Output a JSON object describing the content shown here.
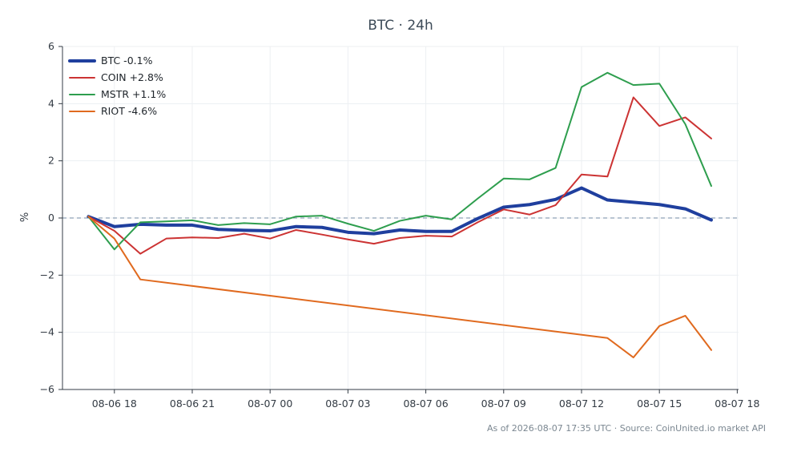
{
  "chart_data": {
    "type": "line",
    "title": "BTC · 24h",
    "xlabel": "",
    "ylabel": "%",
    "ylim": [
      -6,
      6
    ],
    "y_ticks": [
      6,
      4,
      2,
      0,
      -2,
      -4,
      -6
    ],
    "y_tick_labels": [
      "6",
      "4",
      "2",
      "0",
      "−2",
      "−4",
      "−6"
    ],
    "x_ticks": [
      "2026-08-06 18:00",
      "2026-08-06 21:00",
      "2026-08-07 00:00",
      "2026-08-07 03:00",
      "2026-08-07 06:00",
      "2026-08-07 09:00",
      "2026-08-07 12:00",
      "2026-08-07 15:00",
      "2026-08-07 18:00"
    ],
    "x_tick_labels": [
      "08-06 18",
      "08-06 21",
      "08-07 00",
      "08-07 03",
      "08-07 06",
      "08-07 09",
      "08-07 12",
      "08-07 15",
      "08-07 18"
    ],
    "xlim": [
      "2026-08-06 16:00",
      "2026-08-07 18:03"
    ],
    "grid": true,
    "legend_position": "top-left",
    "zero_line": true,
    "series": [
      {
        "name": "BTC -0.1%",
        "color": "#1f3f9e",
        "width": 4,
        "x": [
          "2026-08-06 17:00",
          "2026-08-06 18:00",
          "2026-08-06 19:00",
          "2026-08-06 20:00",
          "2026-08-06 21:00",
          "2026-08-06 22:00",
          "2026-08-06 23:00",
          "2026-08-07 00:00",
          "2026-08-07 01:00",
          "2026-08-07 02:00",
          "2026-08-07 03:00",
          "2026-08-07 04:00",
          "2026-08-07 05:00",
          "2026-08-07 06:00",
          "2026-08-07 07:00",
          "2026-08-07 08:00",
          "2026-08-07 09:00",
          "2026-08-07 10:00",
          "2026-08-07 11:00",
          "2026-08-07 12:00",
          "2026-08-07 13:00",
          "2026-08-07 14:00",
          "2026-08-07 15:00",
          "2026-08-07 16:00",
          "2026-08-07 17:00"
        ],
        "y": [
          0.05,
          -0.3,
          -0.22,
          -0.25,
          -0.25,
          -0.4,
          -0.43,
          -0.45,
          -0.3,
          -0.33,
          -0.5,
          -0.55,
          -0.42,
          -0.47,
          -0.47,
          -0.02,
          0.38,
          0.47,
          0.65,
          1.05,
          0.63,
          0.55,
          0.47,
          0.32,
          -0.07
        ]
      },
      {
        "name": "COIN +2.8%",
        "color": "#cc3333",
        "width": 2,
        "x": [
          "2026-08-06 17:00",
          "2026-08-06 18:00",
          "2026-08-06 19:00",
          "2026-08-06 20:00",
          "2026-08-06 21:00",
          "2026-08-06 22:00",
          "2026-08-06 23:00",
          "2026-08-07 00:00",
          "2026-08-07 01:00",
          "2026-08-07 02:00",
          "2026-08-07 03:00",
          "2026-08-07 04:00",
          "2026-08-07 05:00",
          "2026-08-07 06:00",
          "2026-08-07 07:00",
          "2026-08-07 08:00",
          "2026-08-07 09:00",
          "2026-08-07 10:00",
          "2026-08-07 11:00",
          "2026-08-07 12:00",
          "2026-08-07 13:00",
          "2026-08-07 14:00",
          "2026-08-07 15:00",
          "2026-08-07 16:00",
          "2026-08-07 17:00"
        ],
        "y": [
          0.05,
          -0.45,
          -1.25,
          -0.72,
          -0.68,
          -0.7,
          -0.55,
          -0.72,
          -0.42,
          -0.58,
          -0.75,
          -0.9,
          -0.7,
          -0.62,
          -0.65,
          -0.15,
          0.3,
          0.12,
          0.45,
          1.52,
          1.45,
          4.22,
          3.22,
          3.52,
          2.78
        ]
      },
      {
        "name": "MSTR +1.1%",
        "color": "#2e9e4e",
        "width": 2,
        "x": [
          "2026-08-06 17:00",
          "2026-08-06 18:00",
          "2026-08-06 19:00",
          "2026-08-06 20:00",
          "2026-08-06 21:00",
          "2026-08-06 22:00",
          "2026-08-06 23:00",
          "2026-08-07 00:00",
          "2026-08-07 01:00",
          "2026-08-07 02:00",
          "2026-08-07 03:00",
          "2026-08-07 04:00",
          "2026-08-07 05:00",
          "2026-08-07 06:00",
          "2026-08-07 07:00",
          "2026-08-07 08:00",
          "2026-08-07 09:00",
          "2026-08-07 10:00",
          "2026-08-07 11:00",
          "2026-08-07 12:00",
          "2026-08-07 13:00",
          "2026-08-07 14:00",
          "2026-08-07 15:00",
          "2026-08-07 16:00",
          "2026-08-07 17:00"
        ],
        "y": [
          0.05,
          -1.1,
          -0.15,
          -0.12,
          -0.08,
          -0.25,
          -0.18,
          -0.22,
          0.05,
          0.08,
          -0.2,
          -0.45,
          -0.1,
          0.08,
          -0.05,
          0.68,
          1.38,
          1.35,
          1.75,
          4.58,
          5.08,
          4.65,
          4.7,
          3.28,
          1.12
        ]
      },
      {
        "name": "RIOT -4.6%",
        "color": "#e06a1f",
        "width": 2,
        "x": [
          "2026-08-06 17:00",
          "2026-08-06 18:00",
          "2026-08-06 19:00",
          "2026-08-07 13:00",
          "2026-08-07 14:00",
          "2026-08-07 15:00",
          "2026-08-07 16:00",
          "2026-08-07 17:00"
        ],
        "y": [
          0.05,
          -0.72,
          -2.15,
          -4.2,
          -4.88,
          -3.78,
          -3.42,
          -4.62
        ]
      }
    ]
  },
  "footer": {
    "text": "As of 2026-08-07 17:35 UTC · Source: CoinUnited.io market API"
  }
}
